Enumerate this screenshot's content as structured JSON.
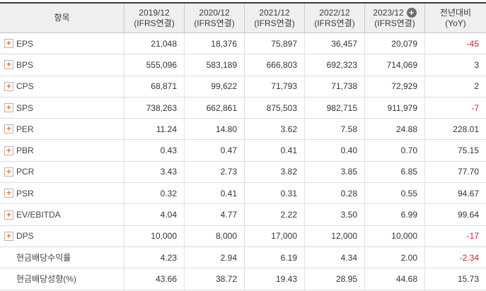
{
  "table": {
    "header": {
      "item_label": "항목",
      "year_columns": [
        {
          "period": "2019/12",
          "basis": "(IFRS연결)",
          "has_add_button": false
        },
        {
          "period": "2020/12",
          "basis": "(IFRS연결)",
          "has_add_button": false
        },
        {
          "period": "2021/12",
          "basis": "(IFRS연결)",
          "has_add_button": false
        },
        {
          "period": "2022/12",
          "basis": "(IFRS연결)",
          "has_add_button": false
        },
        {
          "period": "2023/12",
          "basis": "(IFRS연결)",
          "has_add_button": true
        }
      ],
      "yoy_label": "전년대비",
      "yoy_sub": "(YoY)"
    },
    "rows": [
      {
        "label": "EPS",
        "expandable": true,
        "values": [
          "21,048",
          "18,376",
          "75,897",
          "36,457",
          "20,079"
        ],
        "yoy": "-45"
      },
      {
        "label": "BPS",
        "expandable": true,
        "values": [
          "555,096",
          "583,189",
          "666,803",
          "692,323",
          "714,069"
        ],
        "yoy": "3"
      },
      {
        "label": "CPS",
        "expandable": true,
        "values": [
          "68,871",
          "99,622",
          "71,793",
          "71,738",
          "72,929"
        ],
        "yoy": "2"
      },
      {
        "label": "SPS",
        "expandable": true,
        "values": [
          "738,263",
          "662,861",
          "875,503",
          "982,715",
          "911,979"
        ],
        "yoy": "-7"
      },
      {
        "label": "PER",
        "expandable": true,
        "values": [
          "11.24",
          "14.80",
          "3.62",
          "7.58",
          "24.88"
        ],
        "yoy": "228.01"
      },
      {
        "label": "PBR",
        "expandable": true,
        "values": [
          "0.43",
          "0.47",
          "0.41",
          "0.40",
          "0.70"
        ],
        "yoy": "75.15"
      },
      {
        "label": "PCR",
        "expandable": true,
        "values": [
          "3.43",
          "2.73",
          "3.82",
          "3.85",
          "6.85"
        ],
        "yoy": "77.70"
      },
      {
        "label": "PSR",
        "expandable": true,
        "values": [
          "0.32",
          "0.41",
          "0.31",
          "0.28",
          "0.55"
        ],
        "yoy": "94.67"
      },
      {
        "label": "EV/EBITDA",
        "expandable": true,
        "values": [
          "4.04",
          "4.77",
          "2.22",
          "3.50",
          "6.99"
        ],
        "yoy": "99.64"
      },
      {
        "label": "DPS",
        "expandable": true,
        "values": [
          "10,000",
          "8,000",
          "17,000",
          "12,000",
          "10,000"
        ],
        "yoy": "-17"
      },
      {
        "label": "현금배당수익률",
        "expandable": false,
        "values": [
          "4.23",
          "2.94",
          "6.19",
          "4.34",
          "2.00"
        ],
        "yoy": "-2.34"
      },
      {
        "label": "현금배당성향(%)",
        "expandable": false,
        "values": [
          "43.66",
          "38.72",
          "19.43",
          "28.95",
          "44.68"
        ],
        "yoy": "15.73"
      }
    ]
  },
  "icons": {
    "expand_plus_glyph": "+",
    "add_column_plus_glyph": "+"
  },
  "colors": {
    "negative_value": "#cc2233",
    "expand_icon_orange": "#ee7b1d",
    "add_button_gray": "#6f6f6f",
    "header_background": "#efefef",
    "top_border": "#3c3c3c"
  }
}
